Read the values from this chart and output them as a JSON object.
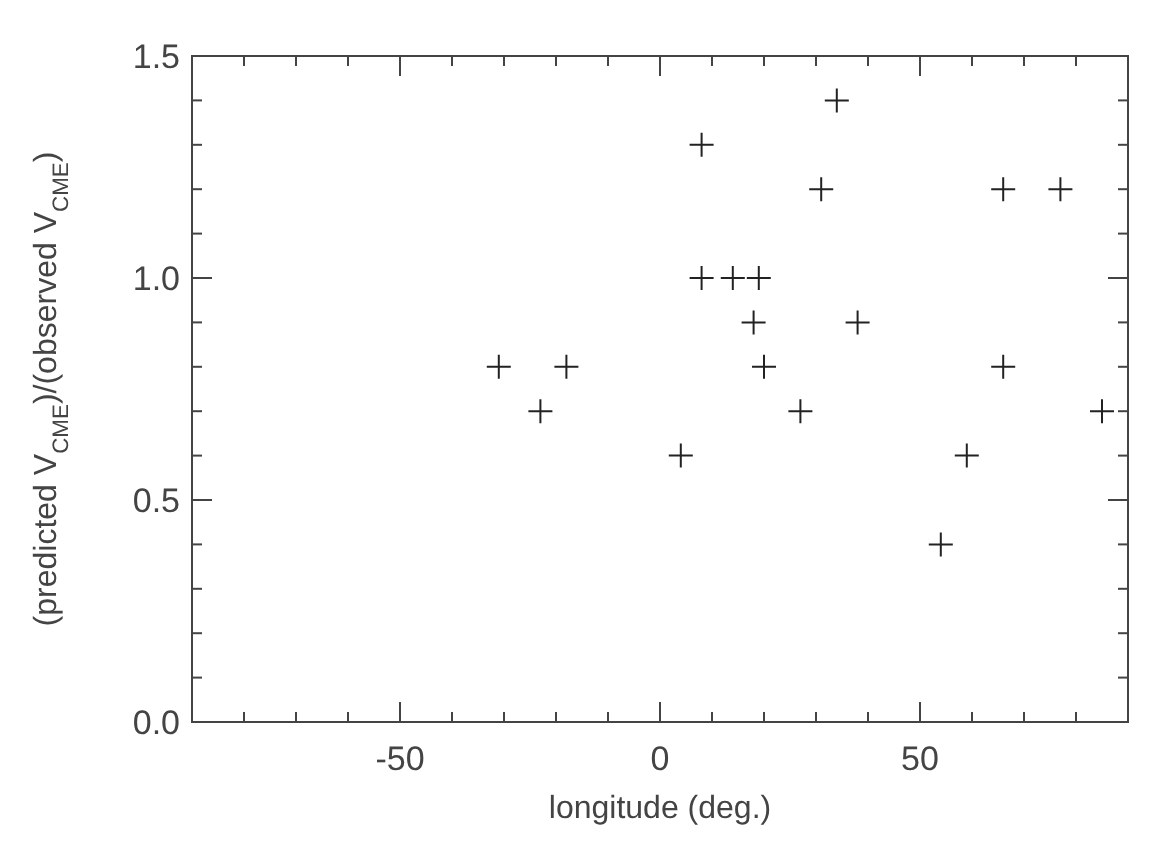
{
  "chart_data": {
    "type": "scatter",
    "xlabel": "longitude (deg.)",
    "ylabel": "(predicted V$_{CME}$)/(observed V$_{CME}$)",
    "xlim": [
      -90,
      90
    ],
    "ylim": [
      0,
      1.5
    ],
    "xticks": [
      -50,
      0,
      50
    ],
    "yticks": [
      {
        "value": 0,
        "label": "0.0"
      },
      {
        "value": 0.5,
        "label": "0.5"
      },
      {
        "value": 1,
        "label": "1.0"
      },
      {
        "value": 1.5,
        "label": "1.5"
      }
    ],
    "marker": "cross",
    "grid": false,
    "series": [
      {
        "color": "#222222",
        "x": [
          -31,
          -23,
          -18,
          4,
          8,
          8,
          14,
          19,
          18,
          20,
          27,
          31,
          34,
          38,
          54,
          59,
          66,
          66,
          77,
          85
        ],
        "values": [
          0.8,
          0.7,
          0.8,
          0.6,
          1.3,
          1.0,
          1.0,
          1.0,
          0.9,
          0.8,
          0.7,
          1.2,
          1.4,
          0.9,
          0.4,
          0.6,
          1.2,
          0.8,
          1.2,
          0.7
        ]
      }
    ]
  }
}
